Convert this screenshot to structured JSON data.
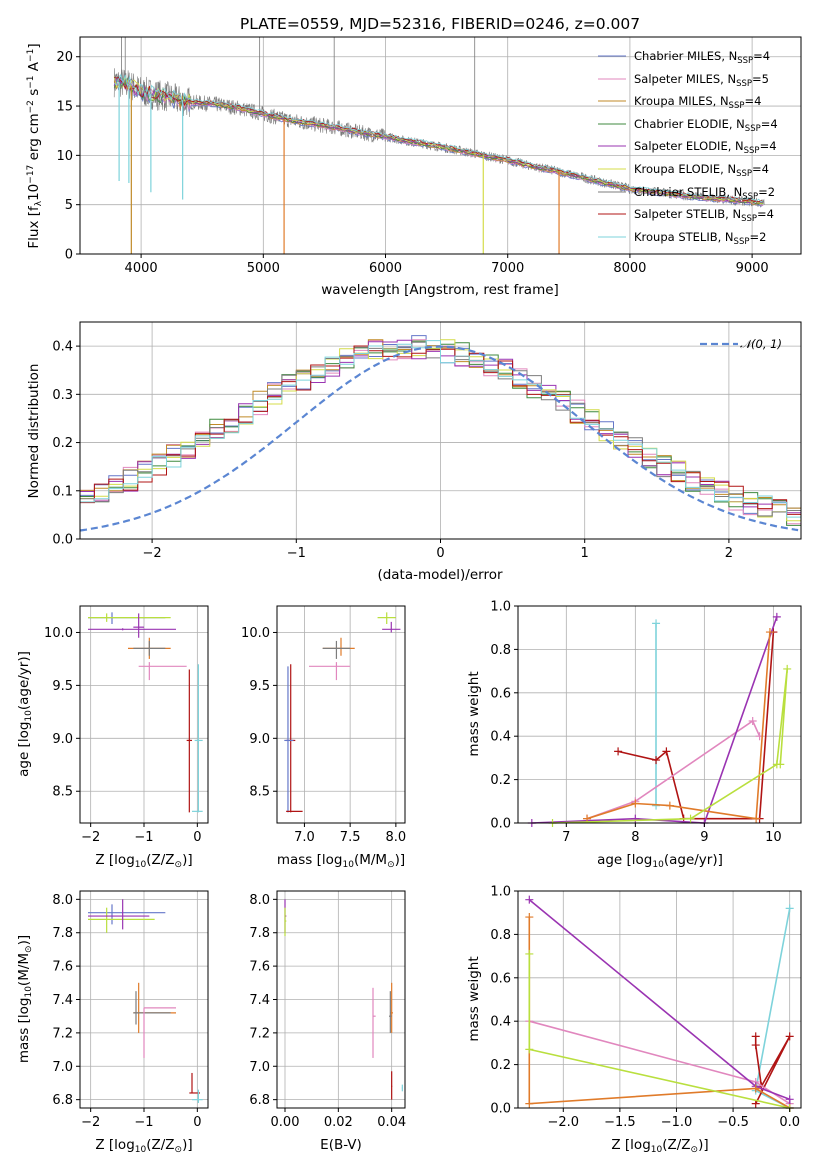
{
  "colors": {
    "series": [
      "#6577c9",
      "#e187be",
      "#c08a27",
      "#3f8a3f",
      "#9a34b2",
      "#d4dc4a",
      "#7d7d7d",
      "#b01414",
      "#7ed3db"
    ],
    "data_line": "#7a7a7a",
    "normal": "#5b86d2",
    "orange": "#e07b2a",
    "green": "#b9df3e"
  },
  "chart_data": [
    {
      "type": "line",
      "title": "PLATE=0559, MJD=52316, FIBERID=0246, z=0.007",
      "xlabel": "wavelength [Angstrom, rest frame]",
      "ylabel_pre": "Flux [f",
      "ylabel_sub": "λ",
      "ylabel_post": "10",
      "ylabel_exp": "−17",
      "ylabel_tail": " erg cm",
      "ylabel_exp2": "−2",
      "ylabel_tail2": " s",
      "ylabel_exp3": "−1",
      "ylabel_tail3": " A",
      "ylabel_exp4": "−1",
      "ylabel_end": "]",
      "xlim": [
        3500,
        9400
      ],
      "ylim": [
        0,
        22
      ],
      "xticks": [
        "4000",
        "5000",
        "6000",
        "7000",
        "8000",
        "9000"
      ],
      "xtick_values": [
        4000,
        5000,
        6000,
        7000,
        8000,
        9000
      ],
      "yticks": [
        "0",
        "5",
        "10",
        "15",
        "20"
      ],
      "ytick_values": [
        0,
        5,
        10,
        15,
        20
      ],
      "continuum_x": [
        3780,
        3900,
        4000,
        4100,
        4200,
        4300,
        4400,
        4600,
        4800,
        5000,
        5200,
        5400,
        5600,
        5800,
        6000,
        6200,
        6400,
        6600,
        6800,
        7000,
        7200,
        7400,
        7600,
        7800,
        8000,
        8200,
        8400,
        8600,
        8800,
        9000,
        9100
      ],
      "continuum_y": [
        17.5,
        17.2,
        16.5,
        16.2,
        16.0,
        15.6,
        15.4,
        15.2,
        14.8,
        14.2,
        13.6,
        13.2,
        12.8,
        12.3,
        11.9,
        11.4,
        11.0,
        10.5,
        10.0,
        9.5,
        8.9,
        8.4,
        7.8,
        7.2,
        6.6,
        6.3,
        6.0,
        5.7,
        5.5,
        5.3,
        5.1
      ],
      "legend": [
        {
          "label": "Chabrier MILES, N",
          "sub": "SSP",
          "val": "=4"
        },
        {
          "label": "Salpeter MILES, N",
          "sub": "SSP",
          "val": "=5"
        },
        {
          "label": "Kroupa MILES, N",
          "sub": "SSP",
          "val": "=4"
        },
        {
          "label": "Chabrier ELODIE, N",
          "sub": "SSP",
          "val": "=4"
        },
        {
          "label": "Salpeter ELODIE, N",
          "sub": "SSP",
          "val": "=4"
        },
        {
          "label": "Kroupa ELODIE, N",
          "sub": "SSP",
          "val": "=4"
        },
        {
          "label": "Chabrier STELIB, N",
          "sub": "SSP",
          "val": "=2"
        },
        {
          "label": "Salpeter STELIB, N",
          "sub": "SSP",
          "val": "=4"
        },
        {
          "label": "Kroupa STELIB, N",
          "sub": "SSP",
          "val": "=2"
        }
      ]
    },
    {
      "type": "line",
      "xlabel": "(data-model)/error",
      "ylabel": "Normed distribution",
      "xlim": [
        -2.5,
        2.5
      ],
      "ylim": [
        0,
        0.45
      ],
      "xticks": [
        "−2",
        "−1",
        "0",
        "1",
        "2"
      ],
      "xtick_values": [
        -2,
        -1,
        0,
        1,
        2
      ],
      "yticks": [
        "0.0",
        "0.1",
        "0.2",
        "0.3",
        "0.4"
      ],
      "ytick_values": [
        0,
        0.1,
        0.2,
        0.3,
        0.4
      ],
      "legend": [
        "𝒩(0, 1)"
      ],
      "normal": {
        "mean": 0,
        "sigma": 1
      }
    },
    {
      "type": "scatter",
      "xlabel": "Z [log",
      "xlabel_sub": "10",
      "xlabel_post": "(Z/Z",
      "xlabel_sub2": "⊙",
      "xlabel_end": ")]",
      "ylabel": "age  [log",
      "ylabel_sub": "10",
      "ylabel_post": "(age/yr)]",
      "xlim": [
        -2.2,
        0.2
      ],
      "ylim": [
        8.2,
        10.25
      ],
      "xticks": [
        "−2",
        "−1",
        "0"
      ],
      "xtick_values": [
        -2,
        -1,
        0
      ],
      "yticks": [
        "8.5",
        "9.0",
        "9.5",
        "10.0"
      ],
      "ytick_values": [
        8.5,
        9.0,
        9.5,
        10.0
      ]
    },
    {
      "type": "scatter",
      "xlabel": "mass [log",
      "xlabel_sub": "10",
      "xlabel_post": "(M/M",
      "xlabel_sub2": "⊙",
      "xlabel_end": ")]",
      "xlim": [
        6.7,
        8.1
      ],
      "ylim": [
        8.2,
        10.25
      ],
      "xticks": [
        "7.0",
        "7.5",
        "8.0"
      ],
      "xtick_values": [
        7,
        7.5,
        8
      ],
      "yticks": [
        "8.5",
        "9.0",
        "9.5",
        "10.0"
      ],
      "ytick_values": [
        8.5,
        9.0,
        9.5,
        10.0
      ]
    },
    {
      "type": "line",
      "xlabel": "age  [log",
      "xlabel_sub": "10",
      "xlabel_post": "(age/yr)]",
      "ylabel": "mass weight",
      "xlim": [
        6.3,
        10.4
      ],
      "ylim": [
        0,
        1
      ],
      "xticks": [
        "7",
        "8",
        "9",
        "10"
      ],
      "xtick_values": [
        7,
        8,
        9,
        10
      ],
      "yticks": [
        "0.0",
        "0.2",
        "0.4",
        "0.6",
        "0.8",
        "1.0"
      ],
      "ytick_values": [
        0,
        0.2,
        0.4,
        0.6,
        0.8,
        1.0
      ]
    },
    {
      "type": "scatter",
      "xlabel": "Z [log",
      "xlabel_sub": "10",
      "xlabel_post": "(Z/Z",
      "xlabel_sub2": "⊙",
      "xlabel_end": ")]",
      "ylabel": "mass [log",
      "ylabel_sub": "10",
      "ylabel_post": "(M/M",
      "ylabel_sub2": "⊙",
      "ylabel_end": ")]",
      "xlim": [
        -2.2,
        0.2
      ],
      "ylim": [
        6.75,
        8.05
      ],
      "xticks": [
        "−2",
        "−1",
        "0"
      ],
      "xtick_values": [
        -2,
        -1,
        0
      ],
      "yticks": [
        "6.8",
        "7.0",
        "7.2",
        "7.4",
        "7.6",
        "7.8",
        "8.0"
      ],
      "ytick_values": [
        6.8,
        7.0,
        7.2,
        7.4,
        7.6,
        7.8,
        8.0
      ]
    },
    {
      "type": "scatter",
      "xlabel": "E(B-V)",
      "xlim": [
        -0.003,
        0.045
      ],
      "ylim": [
        6.75,
        8.05
      ],
      "xticks": [
        "0.00",
        "0.02",
        "0.04"
      ],
      "xtick_values": [
        0,
        0.02,
        0.04
      ],
      "yticks": [
        "6.8",
        "7.0",
        "7.2",
        "7.4",
        "7.6",
        "7.8",
        "8.0"
      ],
      "ytick_values": [
        6.8,
        7.0,
        7.2,
        7.4,
        7.6,
        7.8,
        8.0
      ]
    },
    {
      "type": "line",
      "xlabel": "Z [log",
      "xlabel_sub": "10",
      "xlabel_post": "(Z/Z",
      "xlabel_sub2": "⊙",
      "xlabel_end": ")]",
      "ylabel": "mass weight",
      "xlim": [
        -2.4,
        0.1
      ],
      "ylim": [
        0,
        1
      ],
      "xticks": [
        "−2.0",
        "−1.5",
        "−1.0",
        "−0.5",
        "0.0"
      ],
      "xtick_values": [
        -2,
        -1.5,
        -1,
        -0.5,
        0
      ],
      "yticks": [
        "0.0",
        "0.2",
        "0.4",
        "0.6",
        "0.8",
        "1.0"
      ],
      "ytick_values": [
        0,
        0.2,
        0.4,
        0.6,
        0.8,
        1.0
      ]
    }
  ]
}
